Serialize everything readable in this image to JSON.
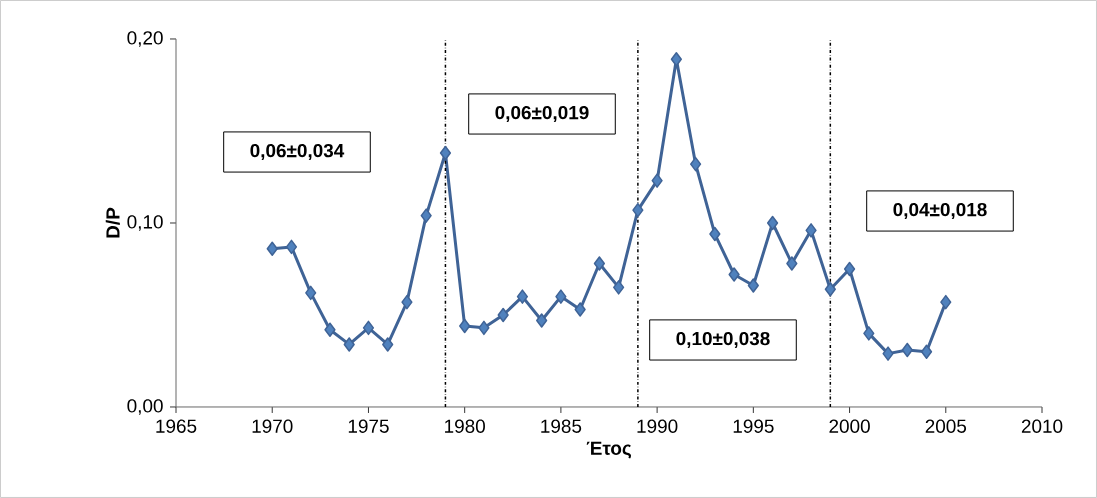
{
  "chart_data": {
    "type": "line",
    "xlabel": "Έτος",
    "ylabel": "D/P",
    "x": [
      1970,
      1971,
      1972,
      1973,
      1974,
      1975,
      1976,
      1977,
      1978,
      1979,
      1980,
      1981,
      1982,
      1983,
      1984,
      1985,
      1986,
      1987,
      1988,
      1989,
      1990,
      1991,
      1992,
      1993,
      1994,
      1995,
      1996,
      1997,
      1998,
      1999,
      2000,
      2001,
      2002,
      2003,
      2004,
      2005
    ],
    "series": [
      {
        "color": "#3f6396",
        "values": [
          0.086,
          0.087,
          0.062,
          0.042,
          0.034,
          0.043,
          0.034,
          0.057,
          0.104,
          0.138,
          0.044,
          0.043,
          0.05,
          0.06,
          0.047,
          0.06,
          0.053,
          0.078,
          0.065,
          0.107,
          0.123,
          0.189,
          0.132,
          0.094,
          0.072,
          0.066,
          0.1,
          0.078,
          0.096,
          0.064,
          0.075,
          0.04,
          0.029,
          0.031,
          0.03,
          0.057
        ]
      }
    ],
    "xlim": [
      1965,
      2010
    ],
    "xticks": [
      1965,
      1970,
      1975,
      1980,
      1985,
      1990,
      1995,
      2000,
      2005,
      2010
    ],
    "ylim": [
      0,
      0.2
    ],
    "yticks": [
      {
        "value": 0,
        "label": "0,00"
      },
      {
        "value": 0.1,
        "label": "0,10"
      },
      {
        "value": 0.2,
        "label": "0,20"
      }
    ],
    "marker": "diamond",
    "line_style": "solid",
    "grid": false,
    "ref_lines": [
      {
        "axis": "x",
        "value": 1979,
        "color": "#000000",
        "line_style": "dashdot"
      },
      {
        "axis": "x",
        "value": 1989,
        "color": "#000000",
        "line_style": "dashdot"
      },
      {
        "axis": "x",
        "value": 1999,
        "color": "#000000",
        "line_style": "dashdot"
      }
    ],
    "annotations": [
      "0,06±0,034",
      "0,06±0,019",
      "0,10±0,038",
      "0,04±0,018"
    ]
  }
}
